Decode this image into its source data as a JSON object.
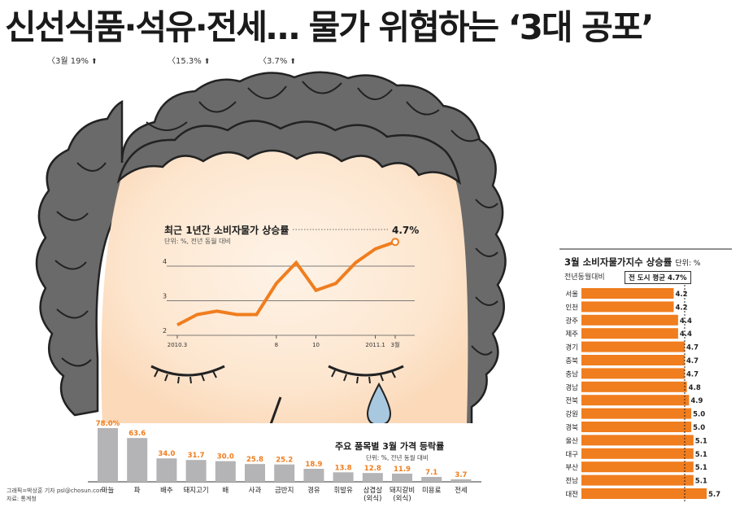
{
  "headline": "신선식품·석유·전세… 물가 위협하는 ‘3대 공포’",
  "sublabels": [
    {
      "text": "〈3월 19%",
      "arrow": "⬆"
    },
    {
      "text": "〈15.3%",
      "arrow": "⬆"
    },
    {
      "text": "〈3.7%",
      "arrow": "⬆"
    }
  ],
  "credits": {
    "line1": "그래픽=박상훈 기자 psl@chosun.com",
    "line2": "자료: 통계청"
  },
  "colors": {
    "accent": "#f07d1e",
    "bar_gray": "#b4b4b6",
    "face": "#fde9d6",
    "hair": "#6a6a6a"
  },
  "chart_data": [
    {
      "type": "line",
      "title": "최근 1년간 소비자물가 상승률",
      "unit": "단위: %, 전년 동월 대비",
      "last_label": "4.7%",
      "yticks": [
        2,
        3,
        4
      ],
      "ylim": [
        2,
        4.8
      ],
      "xtick_labels": [
        {
          "i": 0,
          "label": "2010.3"
        },
        {
          "i": 5,
          "label": "8"
        },
        {
          "i": 7,
          "label": "10"
        },
        {
          "i": 10,
          "label": "2011.1"
        },
        {
          "i": 12,
          "label": "3월"
        }
      ],
      "values": [
        2.3,
        2.6,
        2.7,
        2.6,
        2.6,
        3.5,
        4.1,
        3.3,
        3.5,
        4.1,
        4.5,
        4.7
      ]
    },
    {
      "type": "bar",
      "title": "주요 품목별 3월 가격 등락률",
      "unit": "단위: %, 전년 동월 대비",
      "categories": [
        "마늘",
        "파",
        "배추",
        "돼지고기",
        "배",
        "사과",
        "금반지",
        "경유",
        "휘발유",
        "삼겹살\n(외식)",
        "돼지갈비\n(외식)",
        "미용료",
        "전세"
      ],
      "value_labels": [
        "78.0%",
        "63.6",
        "34.0",
        "31.7",
        "30.0",
        "25.8",
        "25.2",
        "18.9",
        "13.8",
        "12.8",
        "11.9",
        "7.1",
        "3.7"
      ],
      "values": [
        78.0,
        63.6,
        34.0,
        31.7,
        30.0,
        25.8,
        25.2,
        18.9,
        13.8,
        12.8,
        11.9,
        7.1,
        3.7
      ]
    },
    {
      "type": "bar",
      "orientation": "horizontal",
      "title": "3월 소비자물가지수 상승률",
      "unit": "단위: %",
      "subtitle": "전년동월대비",
      "average_label": "전 도시 평균 4.7%",
      "average": 4.7,
      "categories": [
        "서울",
        "인천",
        "광주",
        "제주",
        "경기",
        "충북",
        "충남",
        "경남",
        "전북",
        "강원",
        "경북",
        "울산",
        "대구",
        "부산",
        "전남",
        "대전"
      ],
      "value_labels": [
        "4.2",
        "4.2",
        "4.4",
        "4.4",
        "4.7",
        "4.7",
        "4.7",
        "4.8",
        "4.9",
        "5.0",
        "5.0",
        "5.1",
        "5.1",
        "5.1",
        "5.1",
        "5.7"
      ],
      "values": [
        4.2,
        4.2,
        4.4,
        4.4,
        4.7,
        4.7,
        4.7,
        4.8,
        4.9,
        5.0,
        5.0,
        5.1,
        5.1,
        5.1,
        5.1,
        5.7
      ]
    }
  ]
}
